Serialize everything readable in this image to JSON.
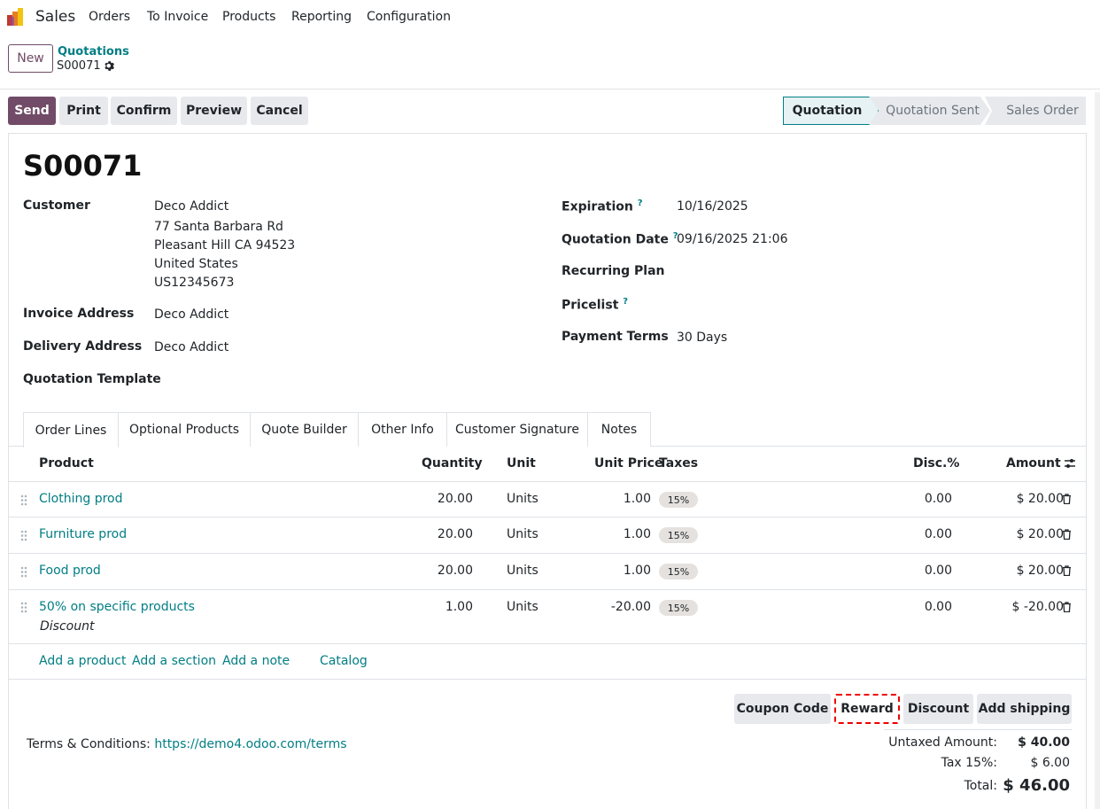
{
  "nav": {
    "app_name": "Sales",
    "menu": [
      "Orders",
      "To Invoice",
      "Products",
      "Reporting",
      "Configuration"
    ]
  },
  "control": {
    "new_label": "New",
    "breadcrumb_parent": "Quotations",
    "breadcrumb_current": "S00071"
  },
  "actions": {
    "send": "Send",
    "print": "Print",
    "confirm": "Confirm",
    "preview": "Preview",
    "cancel": "Cancel"
  },
  "statusbar": {
    "steps": [
      "Quotation",
      "Quotation Sent",
      "Sales Order"
    ],
    "active": "Quotation"
  },
  "form": {
    "title": "S00071",
    "customer_label": "Customer",
    "customer_name": "Deco Addict",
    "customer_address": [
      "77 Santa Barbara Rd",
      "Pleasant Hill CA 94523",
      "United States",
      "US12345673"
    ],
    "invoice_address_label": "Invoice Address",
    "invoice_address": "Deco Addict",
    "delivery_address_label": "Delivery Address",
    "delivery_address": "Deco Addict",
    "quotation_template_label": "Quotation Template",
    "expiration_label": "Expiration",
    "expiration": "10/16/2025",
    "quotation_date_label": "Quotation Date",
    "quotation_date": "09/16/2025 21:06",
    "recurring_plan_label": "Recurring Plan",
    "pricelist_label": "Pricelist",
    "payment_terms_label": "Payment Terms",
    "payment_terms": "30 Days",
    "help_mark": "?"
  },
  "tabs": [
    "Order Lines",
    "Optional Products",
    "Quote Builder",
    "Other Info",
    "Customer Signature",
    "Notes"
  ],
  "table": {
    "headers": {
      "product": "Product",
      "quantity": "Quantity",
      "unit": "Unit",
      "unit_price": "Unit Price",
      "taxes": "Taxes",
      "disc": "Disc.%",
      "amount": "Amount"
    },
    "rows": [
      {
        "product": "Clothing prod",
        "quantity": "20.00",
        "unit": "Units",
        "unit_price": "1.00",
        "tax": "15%",
        "disc": "0.00",
        "amount": "$ 20.00"
      },
      {
        "product": "Furniture prod",
        "quantity": "20.00",
        "unit": "Units",
        "unit_price": "1.00",
        "tax": "15%",
        "disc": "0.00",
        "amount": "$ 20.00"
      },
      {
        "product": "Food prod",
        "quantity": "20.00",
        "unit": "Units",
        "unit_price": "1.00",
        "tax": "15%",
        "disc": "0.00",
        "amount": "$ 20.00"
      },
      {
        "product": "50% on specific products",
        "subtitle": "Discount",
        "quantity": "1.00",
        "unit": "Units",
        "unit_price": "-20.00",
        "tax": "15%",
        "disc": "0.00",
        "amount": "$ -20.00"
      }
    ],
    "add_links": [
      "Add a product",
      "Add a section",
      "Add a note",
      "Catalog"
    ]
  },
  "footer": {
    "buttons": [
      "Coupon Code",
      "Reward",
      "Discount",
      "Add shipping"
    ],
    "terms_label": "Terms & Conditions:",
    "terms_link": "https://demo4.odoo.com/terms",
    "untaxed_label": "Untaxed Amount:",
    "untaxed_value": "$ 40.00",
    "tax_label": "Tax 15%:",
    "tax_value": "$ 6.00",
    "total_label": "Total:",
    "total_value": "$ 46.00"
  },
  "colors": {
    "brand": "#714b67",
    "link": "#017e84",
    "highlight": "#e00000"
  }
}
